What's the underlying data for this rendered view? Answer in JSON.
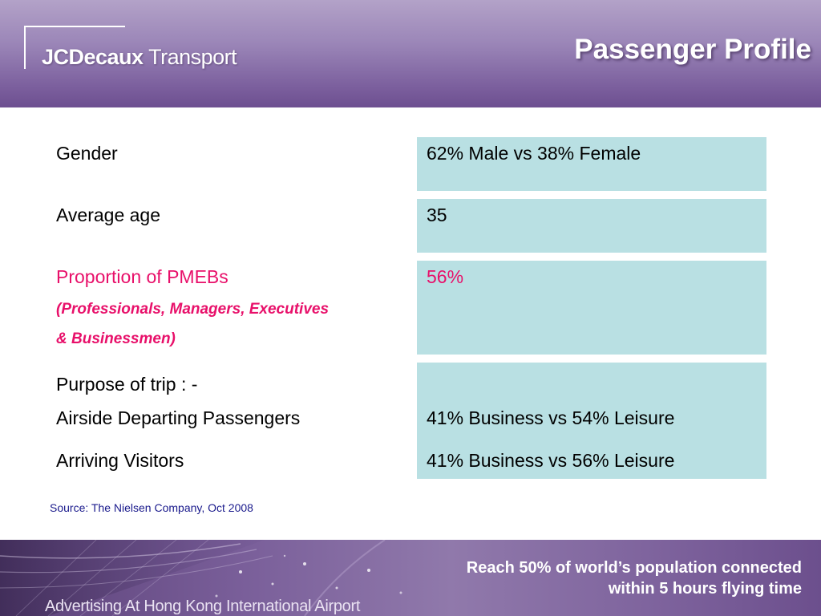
{
  "header": {
    "logo_bold": "JCDecaux",
    "logo_light": " Transport",
    "title": "Passenger Profile"
  },
  "rows": [
    {
      "label": "Gender",
      "value": "62% Male vs 38% Female"
    },
    {
      "label": "Average age",
      "value": "35"
    },
    {
      "label": "Proportion of PMEBs",
      "sub1": "(Professionals, Managers, Executives",
      "sub2": "& Businessmen)",
      "value": "56%"
    },
    {
      "label": "Purpose of trip : -",
      "items": [
        {
          "label": "Airside Departing Passengers",
          "value": "41% Business vs 54% Leisure"
        },
        {
          "label": "Arriving Visitors",
          "value": "41% Business vs 56% Leisure"
        }
      ]
    }
  ],
  "source": "Source: The Nielsen Company, Oct 2008",
  "footer": {
    "tagline": "Advertising At Hong Kong International Airport",
    "message_line1": "Reach 50% of world’s population connected",
    "message_line2": "within 5 hours flying time"
  },
  "colors": {
    "accent": "#e8106a",
    "cell_bg": "#b9e0e3",
    "header_purple": "#7c609e",
    "source_blue": "#1a1a8c"
  }
}
